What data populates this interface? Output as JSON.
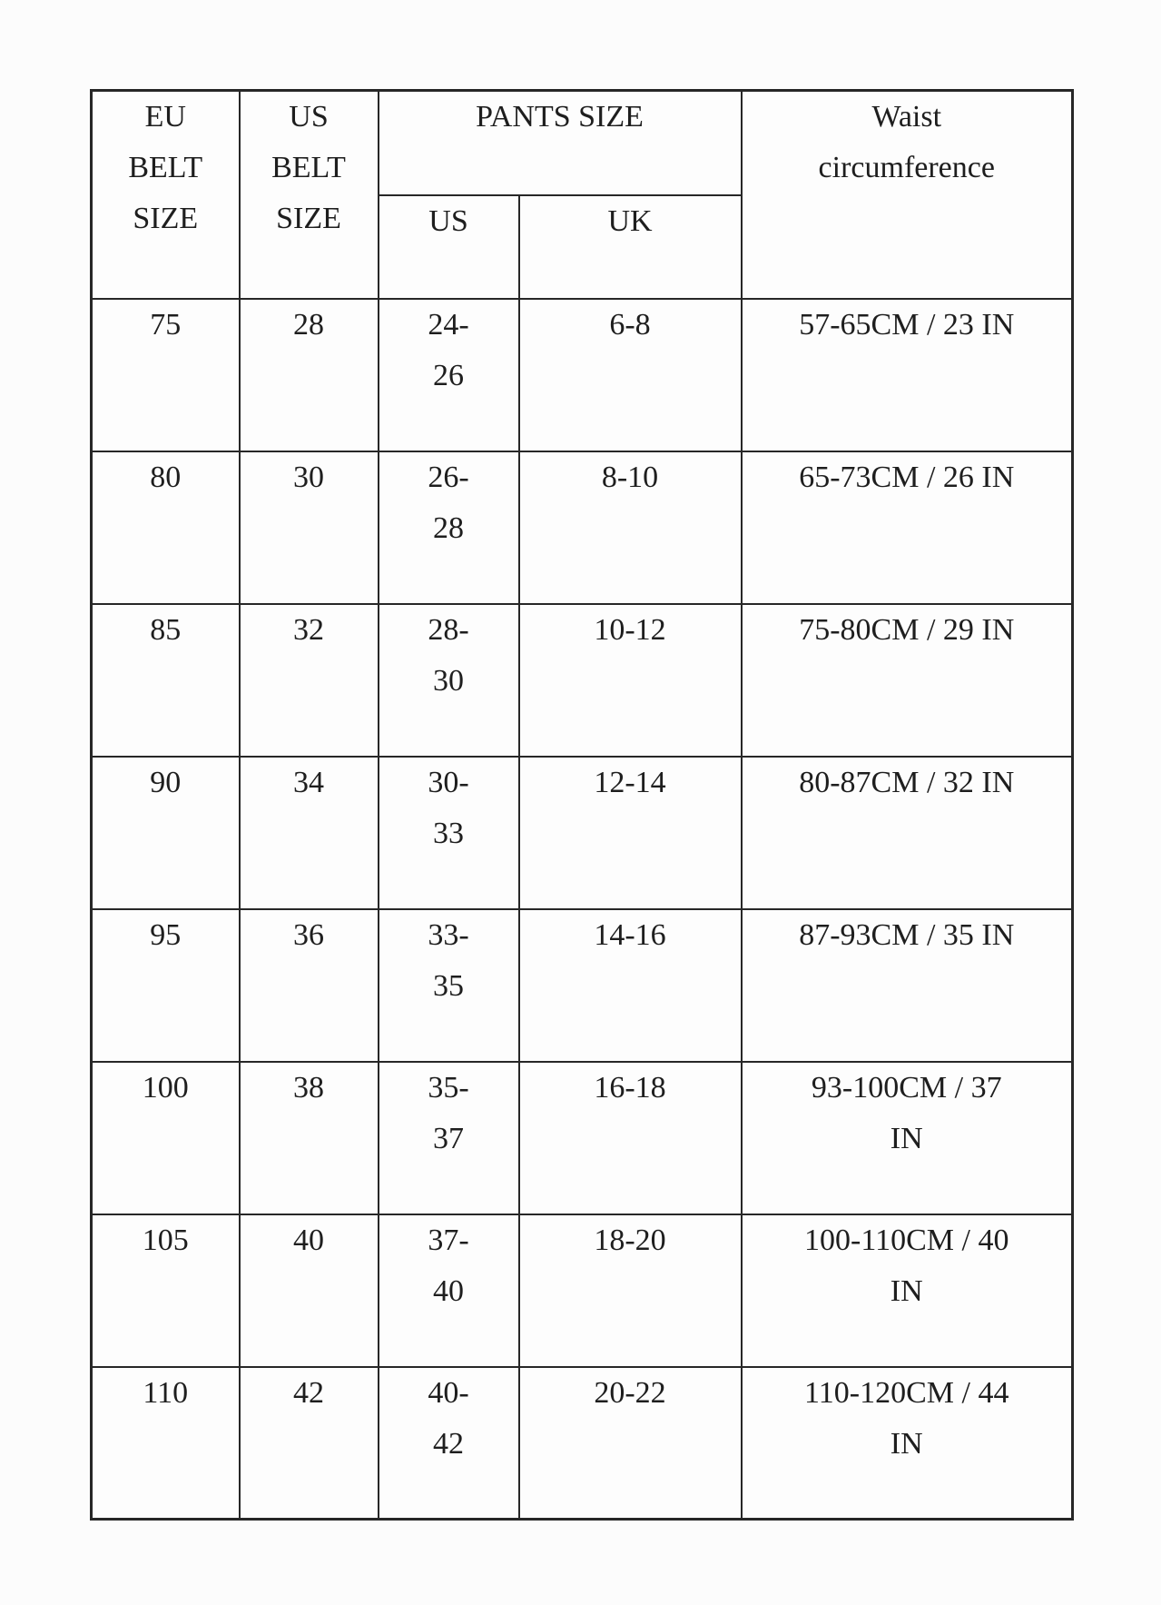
{
  "table": {
    "header": {
      "eu_belt": "EU\nBELT\nSIZE",
      "us_belt": "US\nBELT\nSIZE",
      "pants_size": "PANTS SIZE",
      "pants_us": "US",
      "pants_uk": "UK",
      "waist": "Waist\ncircumference"
    },
    "rows": [
      {
        "eu": "75",
        "us": "28",
        "pants_us": "24-\n26",
        "pants_uk": "6-8",
        "waist": "57-65CM / 23 IN"
      },
      {
        "eu": "80",
        "us": "30",
        "pants_us": "26-\n28",
        "pants_uk": "8-10",
        "waist": "65-73CM / 26 IN"
      },
      {
        "eu": "85",
        "us": "32",
        "pants_us": "28-\n30",
        "pants_uk": "10-12",
        "waist": "75-80CM / 29 IN"
      },
      {
        "eu": "90",
        "us": "34",
        "pants_us": "30-\n33",
        "pants_uk": "12-14",
        "waist": "80-87CM / 32 IN"
      },
      {
        "eu": "95",
        "us": "36",
        "pants_us": "33-\n35",
        "pants_uk": "14-16",
        "waist": "87-93CM / 35 IN"
      },
      {
        "eu": "100",
        "us": "38",
        "pants_us": "35-\n37",
        "pants_uk": "16-18",
        "waist": "93-100CM / 37\nIN"
      },
      {
        "eu": "105",
        "us": "40",
        "pants_us": "37-\n40",
        "pants_uk": "18-20",
        "waist": "100-110CM / 40\nIN"
      },
      {
        "eu": "110",
        "us": "42",
        "pants_us": "40-\n42",
        "pants_uk": "20-22",
        "waist": "110-120CM / 44\nIN"
      }
    ]
  }
}
